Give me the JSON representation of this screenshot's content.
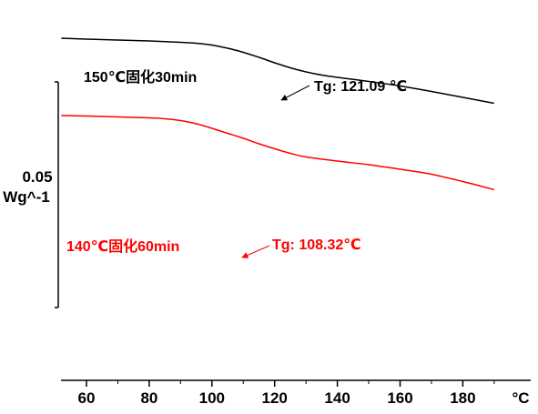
{
  "chart_data": {
    "type": "line",
    "title": "",
    "xlabel": "",
    "ylabel": "",
    "x_unit": "°C",
    "xlim": [
      52,
      582
    ],
    "x_ticks": [
      60,
      80,
      100,
      120,
      140,
      160,
      180
    ],
    "grid": false,
    "legend": "none",
    "scale_bar": {
      "value_line1": "0.05",
      "value_line2": "Wg^-1"
    },
    "series": [
      {
        "color": "#000000",
        "x": [
          52,
          60,
          70,
          80,
          90,
          95,
          100,
          105,
          110,
          115,
          120,
          125,
          130,
          135,
          140,
          150,
          160,
          170,
          180,
          190
        ],
        "y": [
          0,
          -1,
          -2,
          -3,
          -4.5,
          -5.5,
          -7.5,
          -11,
          -15.5,
          -21,
          -27,
          -32.5,
          -37,
          -40.5,
          -43,
          -47.5,
          -52.5,
          -58.5,
          -65,
          -71.5
        ]
      },
      {
        "color": "#ff0000",
        "x": [
          52,
          60,
          70,
          80,
          85,
          90,
          95,
          100,
          105,
          110,
          115,
          120,
          125,
          130,
          140,
          150,
          160,
          170,
          180,
          190
        ],
        "y": [
          -85,
          -85.5,
          -86.5,
          -87.5,
          -88.5,
          -90.5,
          -94,
          -99,
          -104.5,
          -110,
          -116,
          -121.5,
          -126.5,
          -130.5,
          -135,
          -139,
          -144,
          -149.5,
          -157.5,
          -166.5
        ]
      }
    ],
    "annotations": [
      {
        "text": "150℃固化30min",
        "color": "#000000"
      },
      {
        "text": "Tg: 121.09 ℃",
        "color": "#000000",
        "arrow_to": [
          122,
          -27
        ]
      },
      {
        "text": "140℃固化60min",
        "color": "#ff0000"
      },
      {
        "text": "Tg: 108.32℃",
        "color": "#ff0000",
        "arrow_to": [
          110,
          -110
        ]
      }
    ]
  }
}
